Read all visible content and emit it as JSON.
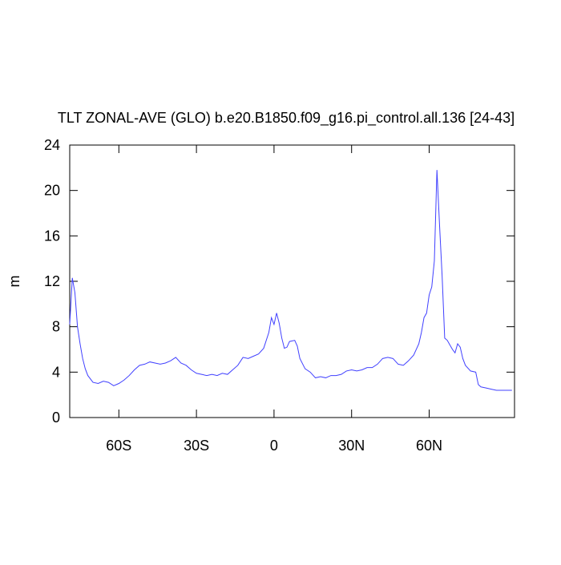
{
  "chart_data": {
    "type": "line",
    "title": "TLT ZONAL-AVE (GLO) b.e20.B1850.f09_g16.pi_control.all.136 [24-43]",
    "y_label": "m",
    "x": [
      -79,
      -78,
      -77,
      -76,
      -75,
      -74,
      -73,
      -72,
      -70,
      -68,
      -66,
      -64,
      -62,
      -60,
      -58,
      -56,
      -54,
      -52,
      -50,
      -48,
      -46,
      -44,
      -42,
      -40,
      -38,
      -36,
      -34,
      -32,
      -30,
      -28,
      -26,
      -24,
      -22,
      -20,
      -18,
      -16,
      -14,
      -12,
      -10,
      -8,
      -6,
      -4,
      -2,
      -1,
      0,
      1,
      2,
      3,
      4,
      5,
      6,
      8,
      9,
      10,
      12,
      14,
      16,
      18,
      20,
      22,
      24,
      26,
      28,
      30,
      32,
      34,
      36,
      38,
      40,
      42,
      44,
      46,
      48,
      50,
      52,
      54,
      56,
      57,
      58,
      59,
      60,
      61,
      62,
      63,
      64,
      65,
      66,
      67,
      68,
      69,
      70,
      71,
      72,
      73,
      74,
      76,
      78,
      79,
      80,
      82,
      84,
      86,
      88,
      90,
      92
    ],
    "series": [
      {
        "name": "TLT",
        "color": "#4040ff",
        "values": [
          8.2,
          12.3,
          11,
          8,
          6.5,
          5.2,
          4.3,
          3.7,
          3.1,
          3.0,
          3.2,
          3.1,
          2.8,
          3.0,
          3.3,
          3.7,
          4.2,
          4.6,
          4.7,
          4.9,
          4.8,
          4.7,
          4.8,
          5.0,
          5.3,
          4.8,
          4.6,
          4.2,
          3.9,
          3.8,
          3.7,
          3.8,
          3.7,
          3.9,
          3.8,
          4.2,
          4.6,
          5.3,
          5.2,
          5.4,
          5.6,
          6.1,
          7.5,
          8.8,
          8.2,
          9.2,
          8.3,
          7.0,
          6.1,
          6.2,
          6.7,
          6.8,
          6.3,
          5.2,
          4.3,
          4.0,
          3.5,
          3.6,
          3.5,
          3.7,
          3.7,
          3.8,
          4.1,
          4.2,
          4.1,
          4.2,
          4.4,
          4.4,
          4.7,
          5.2,
          5.3,
          5.2,
          4.7,
          4.6,
          5.0,
          5.5,
          6.5,
          7.5,
          8.8,
          9.2,
          10.8,
          11.5,
          13.8,
          21.8,
          17,
          12.5,
          7.0,
          6.8,
          6.4,
          6.0,
          5.7,
          6.5,
          6.2,
          5.2,
          4.6,
          4.1,
          4.0,
          2.9,
          2.7,
          2.6,
          2.5,
          2.4,
          2.4,
          2.4,
          2.4
        ]
      }
    ],
    "xlim": [
      -79,
      93
    ],
    "xticks": [
      {
        "value": -60,
        "label": "60S"
      },
      {
        "value": -30,
        "label": "30S"
      },
      0,
      {
        "value": 30,
        "label": "30N"
      },
      {
        "value": 60,
        "label": "60N"
      }
    ],
    "ylim": [
      0,
      24
    ],
    "yticks": [
      0,
      4,
      8,
      12,
      16,
      20,
      24
    ]
  }
}
